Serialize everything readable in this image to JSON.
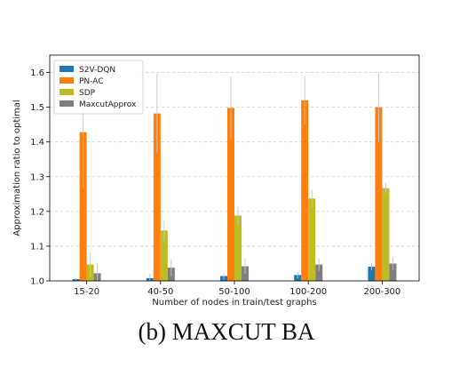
{
  "chart_data": {
    "type": "bar",
    "xlabel": "Number of nodes in train/test graphs",
    "ylabel": "Approximation ratio to optimal",
    "caption": "(b) MAXCUT BA",
    "categories": [
      "15-20",
      "40-50",
      "50-100",
      "100-200",
      "200-300"
    ],
    "ylim": [
      1.0,
      1.65
    ],
    "yticks": [
      "1.0",
      "1.1",
      "1.2",
      "1.3",
      "1.4",
      "1.5",
      "1.6"
    ],
    "grid": true,
    "legend_position": "top-left",
    "series": [
      {
        "name": "S2V-DQN",
        "color": "#1f77b4",
        "values": [
          1.005,
          1.008,
          1.014,
          1.017,
          1.041
        ],
        "error": [
          0.003,
          0.012,
          0.01,
          0.01,
          0.01
        ]
      },
      {
        "name": "PN-AC",
        "color": "#ff7f0e",
        "values": [
          1.428,
          1.482,
          1.498,
          1.52,
          1.5
        ],
        "error": [
          0.16,
          0.115,
          0.09,
          0.07,
          0.1
        ]
      },
      {
        "name": "SDP",
        "color": "#bcbd22",
        "values": [
          1.047,
          1.145,
          1.188,
          1.237,
          1.267
        ],
        "error": [
          0.035,
          0.03,
          0.028,
          0.025,
          0.015
        ]
      },
      {
        "name": "MaxcutApprox",
        "color": "#7f7f7f",
        "values": [
          1.022,
          1.038,
          1.042,
          1.047,
          1.05
        ],
        "error": [
          0.03,
          0.025,
          0.022,
          0.018,
          0.018
        ]
      }
    ]
  }
}
